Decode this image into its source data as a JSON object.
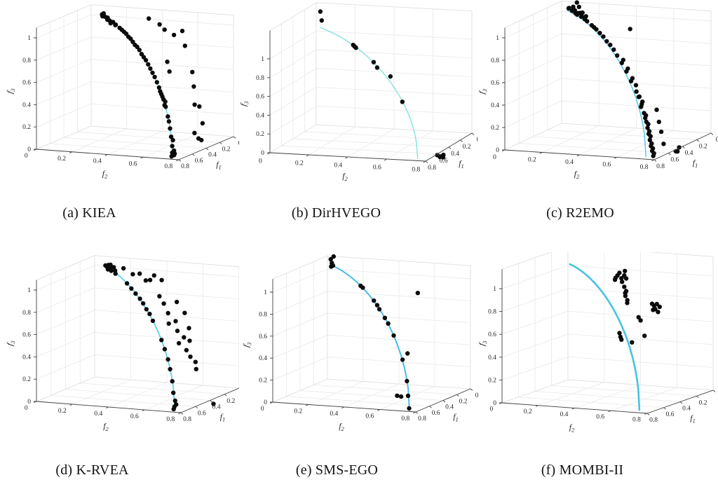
{
  "figure": {
    "background": "#ffffff",
    "caption_color": "#141414"
  },
  "axes": {
    "bottom_left_label": {
      "base": "f",
      "sub": "2"
    },
    "bottom_right_label": {
      "base": "f",
      "sub": "1"
    },
    "vertical_label": {
      "base": "f",
      "sub": "3"
    },
    "bottom_left_ticks": [
      "0",
      "0.2",
      "0.4",
      "0.6",
      "0.8"
    ],
    "bottom_right_ticks": [
      "0.8",
      "0.6",
      "0.4",
      "0.2",
      "0"
    ],
    "vertical_ticks": [
      "0",
      "0.2",
      "0.4",
      "0.6",
      "0.8",
      "1"
    ],
    "grid_color": "#ebebeb",
    "wall_edge_color": "#e2e2e2",
    "axis_color": "#3f3f3f",
    "tick_label_color": "#262626",
    "point_color": "#0b0b0b"
  },
  "chart_data": [
    {
      "id": "a",
      "type": "scatter",
      "caption": "(a) KIEA",
      "front_curve": {
        "color": "#62cfe0",
        "width": 1.3,
        "radius": 1.05,
        "t_start": 0.09
      },
      "points": [
        [
          0.1,
          0.1,
          1.04
        ],
        [
          0.12,
          0.11,
          1.03
        ],
        [
          0.13,
          0.14,
          1.02
        ],
        [
          0.15,
          0.15,
          1.03
        ],
        [
          0.16,
          0.14,
          1.04
        ],
        [
          0.17,
          0.17,
          1.01
        ],
        [
          0.18,
          0.16,
          1.02
        ],
        [
          0.2,
          0.2,
          1.01
        ],
        [
          0.21,
          0.19,
          1.0
        ],
        [
          0.22,
          0.22,
          0.99
        ],
        [
          0.24,
          0.23,
          1.0
        ],
        [
          0.13,
          0.12,
          1.06
        ],
        [
          0.26,
          0.26,
          0.98
        ],
        [
          0.28,
          0.28,
          0.97
        ],
        [
          0.3,
          0.3,
          0.96
        ],
        [
          0.32,
          0.32,
          0.95
        ],
        [
          0.34,
          0.34,
          0.93
        ],
        [
          0.36,
          0.36,
          0.92
        ],
        [
          0.38,
          0.38,
          0.9
        ],
        [
          0.4,
          0.4,
          0.88
        ],
        [
          0.42,
          0.42,
          0.87
        ],
        [
          0.44,
          0.44,
          0.85
        ],
        [
          0.46,
          0.46,
          0.82
        ],
        [
          0.48,
          0.48,
          0.8
        ],
        [
          0.5,
          0.5,
          0.78
        ],
        [
          0.52,
          0.52,
          0.75
        ],
        [
          0.54,
          0.54,
          0.72
        ],
        [
          0.56,
          0.56,
          0.69
        ],
        [
          0.58,
          0.58,
          0.66
        ],
        [
          0.6,
          0.6,
          0.62
        ],
        [
          0.62,
          0.62,
          0.58
        ],
        [
          0.63,
          0.63,
          0.55
        ],
        [
          0.64,
          0.64,
          0.53
        ],
        [
          0.65,
          0.65,
          0.51
        ],
        [
          0.66,
          0.66,
          0.49
        ],
        [
          0.66,
          0.67,
          0.47
        ],
        [
          0.67,
          0.67,
          0.44
        ],
        [
          0.68,
          0.68,
          0.43
        ],
        [
          0.7,
          0.7,
          0.35
        ],
        [
          0.71,
          0.71,
          0.31
        ],
        [
          0.72,
          0.72,
          0.25
        ],
        [
          0.73,
          0.73,
          0.18
        ],
        [
          0.73,
          0.74,
          0.15
        ],
        [
          0.74,
          0.74,
          0.1
        ],
        [
          0.74,
          0.74,
          0.04
        ],
        [
          0.74,
          0.75,
          0.02
        ],
        [
          0.75,
          0.74,
          0.01
        ],
        [
          0.73,
          0.75,
          0.03
        ],
        [
          0.74,
          0.75,
          0.06
        ],
        [
          0.3,
          0.5,
          1.05
        ],
        [
          0.25,
          0.42,
          1.08
        ],
        [
          0.28,
          0.62,
          1.0
        ],
        [
          0.35,
          0.6,
          0.98
        ],
        [
          0.45,
          0.7,
          0.92
        ],
        [
          0.28,
          0.52,
          1.0
        ],
        [
          0.55,
          0.78,
          0.72
        ],
        [
          0.58,
          0.8,
          0.6
        ],
        [
          0.62,
          0.82,
          0.45
        ],
        [
          0.63,
          0.85,
          0.44
        ],
        [
          0.66,
          0.88,
          0.3
        ],
        [
          0.72,
          0.88,
          0.18
        ],
        [
          0.73,
          0.9,
          0.17
        ],
        [
          0.7,
          0.85,
          0.22
        ],
        [
          0.5,
          0.62,
          0.78
        ],
        [
          0.52,
          0.64,
          0.7
        ]
      ]
    },
    {
      "id": "b",
      "type": "scatter",
      "caption": "(b) DirHVEGO",
      "front_curve": {
        "color": "#8de4da",
        "width": 1.5,
        "radius": 1.05,
        "t_start": 0.03
      },
      "points": [
        [
          0.03,
          0.03,
          1.22
        ],
        [
          0.04,
          0.04,
          1.13
        ],
        [
          0.27,
          0.27,
          0.98
        ],
        [
          0.28,
          0.28,
          0.97
        ],
        [
          0.29,
          0.29,
          0.96
        ],
        [
          0.42,
          0.42,
          0.87
        ],
        [
          0.46,
          0.45,
          0.83
        ],
        [
          0.5,
          0.53,
          0.76
        ],
        [
          0.63,
          0.63,
          0.55
        ],
        [
          0.68,
          0.84,
          0.01
        ],
        [
          0.7,
          0.86,
          0.01
        ],
        [
          0.72,
          0.85,
          0.02
        ],
        [
          0.66,
          0.85,
          0.02
        ],
        [
          0.7,
          0.83,
          0.03
        ]
      ]
    },
    {
      "id": "c",
      "type": "scatter",
      "caption": "(c) R2EMO",
      "front_curve": {
        "color": "#55c8e4",
        "width": 1.5,
        "radius": 1.03,
        "t_start": 0.05
      },
      "points": [
        [
          0.06,
          0.06,
          1.05
        ],
        [
          0.08,
          0.07,
          1.06
        ],
        [
          0.09,
          0.09,
          1.04
        ],
        [
          0.1,
          0.1,
          1.08
        ],
        [
          0.11,
          0.1,
          1.05
        ],
        [
          0.12,
          0.12,
          1.03
        ],
        [
          0.13,
          0.12,
          1.06
        ],
        [
          0.14,
          0.14,
          1.04
        ],
        [
          0.15,
          0.15,
          1.1
        ],
        [
          0.15,
          0.14,
          1.03
        ],
        [
          0.16,
          0.16,
          1.05
        ],
        [
          0.17,
          0.17,
          1.02
        ],
        [
          0.18,
          0.18,
          1.06
        ],
        [
          0.19,
          0.18,
          1.03
        ],
        [
          0.2,
          0.2,
          1.01
        ],
        [
          0.21,
          0.21,
          1.04
        ],
        [
          0.22,
          0.22,
          1.0
        ],
        [
          0.1,
          0.12,
          1.12
        ],
        [
          0.26,
          0.26,
          0.98
        ],
        [
          0.28,
          0.28,
          0.97
        ],
        [
          0.3,
          0.3,
          0.96
        ],
        [
          0.33,
          0.33,
          0.94
        ],
        [
          0.36,
          0.36,
          0.92
        ],
        [
          0.39,
          0.39,
          0.89
        ],
        [
          0.42,
          0.42,
          0.87
        ],
        [
          0.45,
          0.45,
          0.84
        ],
        [
          0.35,
          0.5,
          1.0
        ],
        [
          0.48,
          0.48,
          0.8
        ],
        [
          0.5,
          0.52,
          0.77
        ],
        [
          0.52,
          0.52,
          0.75
        ],
        [
          0.54,
          0.56,
          0.71
        ],
        [
          0.56,
          0.56,
          0.69
        ],
        [
          0.58,
          0.6,
          0.64
        ],
        [
          0.6,
          0.6,
          0.62
        ],
        [
          0.61,
          0.63,
          0.59
        ],
        [
          0.63,
          0.64,
          0.54
        ],
        [
          0.64,
          0.66,
          0.5
        ],
        [
          0.65,
          0.66,
          0.5
        ],
        [
          0.65,
          0.68,
          0.46
        ],
        [
          0.66,
          0.68,
          0.44
        ],
        [
          0.67,
          0.68,
          0.42
        ],
        [
          0.68,
          0.7,
          0.37
        ],
        [
          0.68,
          0.71,
          0.35
        ],
        [
          0.69,
          0.71,
          0.33
        ],
        [
          0.7,
          0.72,
          0.3
        ],
        [
          0.7,
          0.73,
          0.28
        ],
        [
          0.71,
          0.73,
          0.25
        ],
        [
          0.71,
          0.74,
          0.22
        ],
        [
          0.72,
          0.74,
          0.2
        ],
        [
          0.72,
          0.75,
          0.18
        ],
        [
          0.73,
          0.75,
          0.15
        ],
        [
          0.73,
          0.76,
          0.12
        ],
        [
          0.74,
          0.76,
          0.1
        ],
        [
          0.74,
          0.77,
          0.08
        ],
        [
          0.75,
          0.77,
          0.06
        ],
        [
          0.75,
          0.78,
          0.04
        ],
        [
          0.76,
          0.78,
          0.02
        ],
        [
          0.66,
          0.76,
          0.4
        ],
        [
          0.68,
          0.78,
          0.3
        ],
        [
          0.7,
          0.8,
          0.22
        ],
        [
          0.72,
          0.82,
          0.12
        ],
        [
          0.6,
          0.84,
          0.02
        ],
        [
          0.63,
          0.86,
          0.03
        ],
        [
          0.58,
          0.85,
          0.05
        ]
      ]
    },
    {
      "id": "d",
      "type": "scatter",
      "caption": "(d) K-RVEA",
      "front_curve": {
        "color": "#58cde0",
        "width": 1.7,
        "radius": 1.05,
        "t_start": 0.09
      },
      "points": [
        [
          0.1,
          0.1,
          1.04
        ],
        [
          0.11,
          0.12,
          1.05
        ],
        [
          0.12,
          0.12,
          1.03
        ],
        [
          0.13,
          0.14,
          1.06
        ],
        [
          0.14,
          0.13,
          1.02
        ],
        [
          0.15,
          0.15,
          1.04
        ],
        [
          0.16,
          0.17,
          1.05
        ],
        [
          0.17,
          0.16,
          1.02
        ],
        [
          0.19,
          0.19,
          1.03
        ],
        [
          0.21,
          0.2,
          1.01
        ],
        [
          0.22,
          0.3,
          1.02
        ],
        [
          0.25,
          0.35,
          1.04
        ],
        [
          0.28,
          0.42,
          1.0
        ],
        [
          0.3,
          0.45,
          1.05
        ],
        [
          0.24,
          0.38,
          0.98
        ],
        [
          0.32,
          0.5,
          1.02
        ],
        [
          0.3,
          0.3,
          0.96
        ],
        [
          0.34,
          0.34,
          0.93
        ],
        [
          0.38,
          0.38,
          0.9
        ],
        [
          0.42,
          0.42,
          0.87
        ],
        [
          0.45,
          0.45,
          0.84
        ],
        [
          0.48,
          0.48,
          0.8
        ],
        [
          0.51,
          0.51,
          0.77
        ],
        [
          0.54,
          0.54,
          0.72
        ],
        [
          0.4,
          0.52,
          0.9
        ],
        [
          0.44,
          0.56,
          0.85
        ],
        [
          0.48,
          0.6,
          0.78
        ],
        [
          0.5,
          0.65,
          0.72
        ],
        [
          0.52,
          0.62,
          0.7
        ],
        [
          0.55,
          0.68,
          0.65
        ],
        [
          0.56,
          0.72,
          0.6
        ],
        [
          0.58,
          0.7,
          0.55
        ],
        [
          0.6,
          0.75,
          0.5
        ],
        [
          0.62,
          0.78,
          0.45
        ],
        [
          0.58,
          0.76,
          0.58
        ],
        [
          0.54,
          0.74,
          0.68
        ],
        [
          0.5,
          0.7,
          0.8
        ],
        [
          0.46,
          0.64,
          0.88
        ],
        [
          0.6,
          0.8,
          0.4
        ],
        [
          0.64,
          0.82,
          0.35
        ],
        [
          0.62,
          0.62,
          0.58
        ],
        [
          0.65,
          0.65,
          0.51
        ],
        [
          0.68,
          0.68,
          0.43
        ],
        [
          0.7,
          0.7,
          0.35
        ],
        [
          0.72,
          0.72,
          0.25
        ],
        [
          0.73,
          0.73,
          0.15
        ],
        [
          0.74,
          0.74,
          0.03
        ],
        [
          0.74,
          0.75,
          0.05
        ],
        [
          0.75,
          0.74,
          0.01
        ],
        [
          0.73,
          0.74,
          0.08
        ],
        [
          0.55,
          0.88,
          0.02
        ],
        [
          0.2,
          0.24,
          1.06
        ]
      ]
    },
    {
      "id": "e",
      "type": "scatter",
      "caption": "(e) SMS-EGO",
      "front_curve": {
        "color": "#49bce8",
        "width": 2.0,
        "radius": 1.05,
        "t_start": 0.025
      },
      "points": [
        [
          0.03,
          0.03,
          1.1
        ],
        [
          0.04,
          0.04,
          1.07
        ],
        [
          0.05,
          0.04,
          1.04
        ],
        [
          0.04,
          0.05,
          1.13
        ],
        [
          0.05,
          0.05,
          1.05
        ],
        [
          0.3,
          0.3,
          0.96
        ],
        [
          0.32,
          0.32,
          0.95
        ],
        [
          0.42,
          0.42,
          0.87
        ],
        [
          0.45,
          0.45,
          0.84
        ],
        [
          0.47,
          0.47,
          0.81
        ],
        [
          0.52,
          0.52,
          0.75
        ],
        [
          0.55,
          0.55,
          0.71
        ],
        [
          0.6,
          0.6,
          0.62
        ],
        [
          0.68,
          0.68,
          0.43
        ],
        [
          0.72,
          0.72,
          0.25
        ],
        [
          0.73,
          0.73,
          0.12
        ],
        [
          0.55,
          0.6,
          0.06
        ],
        [
          0.57,
          0.63,
          0.06
        ],
        [
          0.74,
          0.74,
          0.01
        ],
        [
          0.3,
          0.62,
          0.93
        ],
        [
          0.45,
          0.62,
          0.42
        ]
      ]
    },
    {
      "id": "f",
      "type": "scatter",
      "caption": "(f) MOMBI-II",
      "front_curve": {
        "color": "#47c4df",
        "width": 2.6,
        "radius": 1.02,
        "t_start": 0.02
      },
      "points": [
        [
          0.28,
          0.4,
          1.03
        ],
        [
          0.3,
          0.42,
          1.06
        ],
        [
          0.32,
          0.44,
          1.02
        ],
        [
          0.3,
          0.45,
          1.08
        ],
        [
          0.26,
          0.38,
          1.0
        ],
        [
          0.33,
          0.46,
          1.05
        ],
        [
          0.29,
          0.43,
          0.98
        ],
        [
          0.35,
          0.48,
          1.03
        ],
        [
          0.31,
          0.4,
          1.0
        ],
        [
          0.33,
          0.46,
          0.95
        ],
        [
          0.35,
          0.48,
          0.92
        ],
        [
          0.36,
          0.48,
          0.88
        ],
        [
          0.34,
          0.47,
          0.9
        ],
        [
          0.38,
          0.5,
          0.85
        ],
        [
          0.36,
          0.49,
          0.82
        ],
        [
          0.3,
          0.6,
          0.81
        ],
        [
          0.32,
          0.62,
          0.8
        ],
        [
          0.33,
          0.64,
          0.82
        ],
        [
          0.35,
          0.64,
          0.78
        ],
        [
          0.34,
          0.66,
          0.8
        ],
        [
          0.31,
          0.61,
          0.76
        ],
        [
          0.36,
          0.66,
          0.76
        ],
        [
          0.42,
          0.58,
          0.72
        ],
        [
          0.44,
          0.6,
          0.7
        ],
        [
          0.48,
          0.64,
          0.58
        ],
        [
          0.52,
          0.52,
          0.6
        ],
        [
          0.53,
          0.53,
          0.57
        ],
        [
          0.54,
          0.54,
          0.55
        ],
        [
          0.5,
          0.58,
          0.52
        ]
      ]
    }
  ]
}
